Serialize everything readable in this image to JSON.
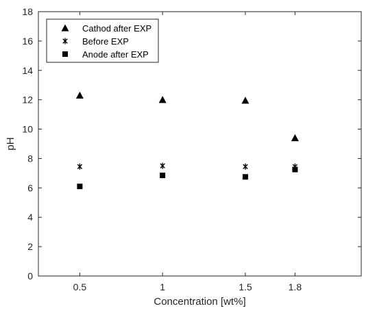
{
  "chart_data": {
    "type": "scatter",
    "title": "",
    "xlabel": "Concentration [wt%]",
    "ylabel": "pH",
    "categories": [
      "0.5",
      "1",
      "1.5",
      "1.8"
    ],
    "x": [
      0.5,
      1,
      1.5,
      1.8
    ],
    "xlim": [
      0.25,
      2.2
    ],
    "ylim": [
      0,
      18
    ],
    "yticks": [
      0,
      2,
      4,
      6,
      8,
      10,
      12,
      14,
      16,
      18
    ],
    "grid": false,
    "legend_position": "top-left",
    "series": [
      {
        "name": "Cathod after EXP",
        "marker": "triangle",
        "values": [
          12.3,
          12.0,
          11.95,
          9.4
        ]
      },
      {
        "name": "Before EXP",
        "marker": "asterisk",
        "values": [
          7.45,
          7.5,
          7.45,
          7.45
        ]
      },
      {
        "name": "Anode after EXP",
        "marker": "square",
        "values": [
          6.1,
          6.85,
          6.75,
          7.25
        ]
      }
    ],
    "colors": {
      "marker": "#000000",
      "axis": "#262626"
    }
  }
}
